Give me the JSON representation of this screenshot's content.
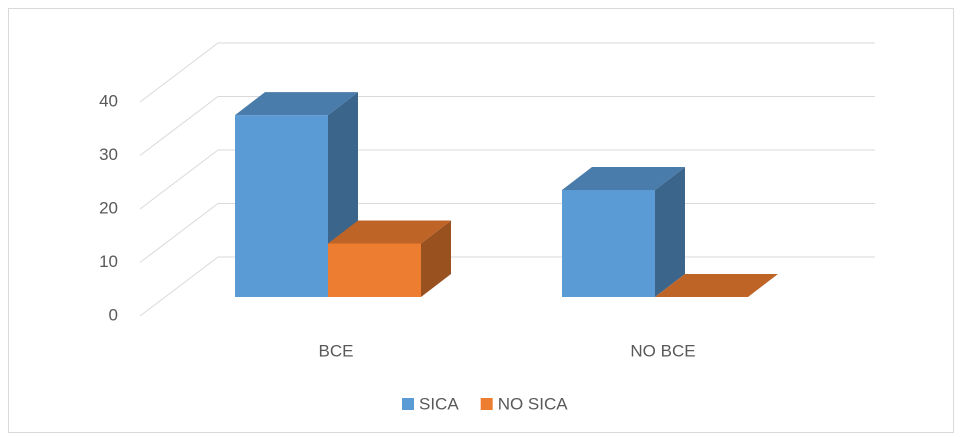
{
  "chart_data": {
    "type": "bar3d",
    "categories": [
      "BCE",
      "NO BCE"
    ],
    "series": [
      {
        "name": "SICA",
        "color": "#5b9bd5",
        "values": [
          34,
          20
        ]
      },
      {
        "name": "NO SICA",
        "color": "#ed7d31",
        "values": [
          10,
          0
        ]
      }
    ],
    "ylim": [
      0,
      40
    ],
    "yticks": [
      0,
      10,
      20,
      30,
      40
    ],
    "grid": true,
    "legend": "bottom"
  }
}
